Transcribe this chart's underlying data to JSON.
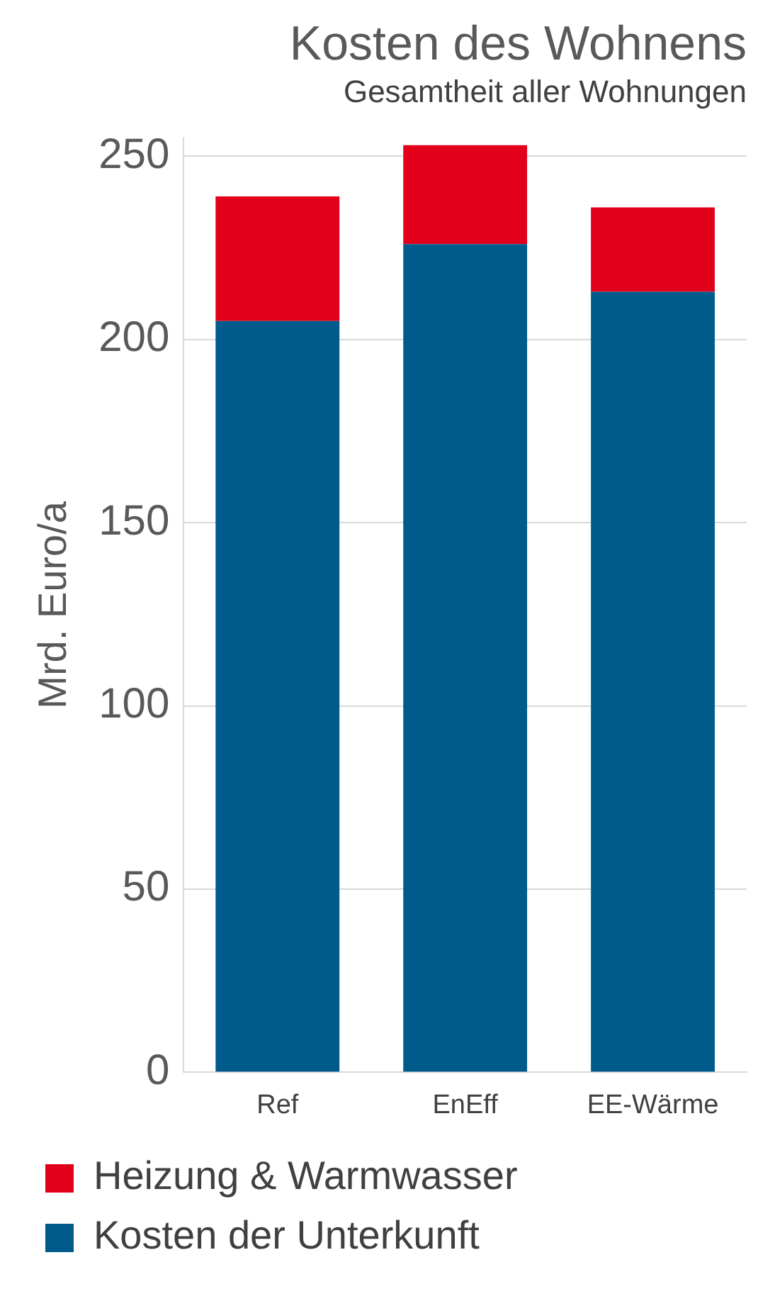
{
  "chart_data": {
    "type": "bar",
    "title": "Kosten des Wohnens",
    "subtitle": "Gesamtheit aller Wohnungen",
    "ylabel": "Mrd. Euro/a",
    "categories": [
      "Ref",
      "EnEff",
      "EE-Wärme"
    ],
    "stacked": true,
    "series": [
      {
        "name": "Kosten der Unterkunft",
        "color": "#005a8c",
        "values": [
          205,
          226,
          213
        ]
      },
      {
        "name": "Heizung & Warmwasser",
        "color": "#e2001a",
        "values": [
          34,
          27,
          23
        ]
      }
    ],
    "ylim": [
      0,
      255
    ],
    "yticks": [
      0,
      50,
      100,
      150,
      200,
      250
    ],
    "grid": "y",
    "legend": "bottom"
  }
}
